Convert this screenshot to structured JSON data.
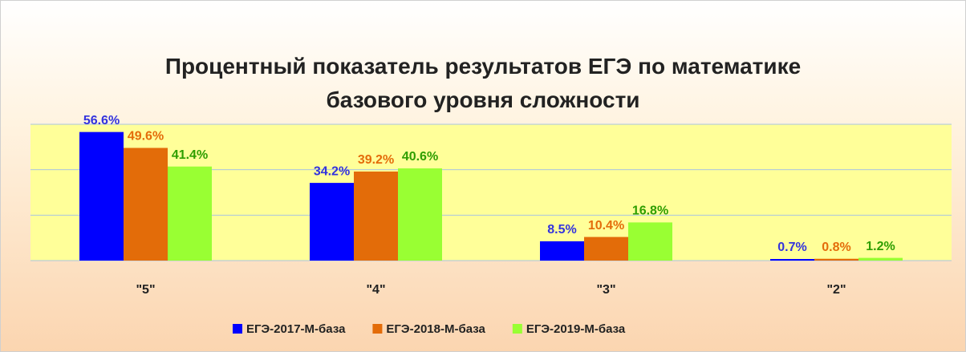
{
  "chart_data": {
    "type": "bar",
    "title": "Процентный показатель результатов ЕГЭ по математике базового уровня сложности",
    "categories": [
      "\"5\"",
      "\"4\"",
      "\"3\"",
      "\"2\""
    ],
    "series": [
      {
        "name": "ЕГЭ-2017-М-база",
        "color": "#0000ff",
        "label_color": "#3333dd",
        "values": [
          56.6,
          34.2,
          8.5,
          0.7
        ],
        "value_labels": [
          "56.6%",
          "34.2%",
          "8.5%",
          "0.7%"
        ]
      },
      {
        "name": "ЕГЭ-2018-М-база",
        "color": "#e36c09",
        "label_color": "#e46c0a",
        "values": [
          49.6,
          39.2,
          10.4,
          0.8
        ],
        "value_labels": [
          "49.6%",
          "39.2%",
          "10.4%",
          "0.8%"
        ]
      },
      {
        "name": "ЕГЭ-2019-М-база",
        "color": "#99ff33",
        "label_color": "#2e9e00",
        "values": [
          41.4,
          40.6,
          16.8,
          1.2
        ],
        "value_labels": [
          "41.4%",
          "40.6%",
          "16.8%",
          "1.2%"
        ]
      }
    ],
    "ylim": [
      0,
      60
    ],
    "yticks": [
      0,
      20,
      40,
      60
    ],
    "grid": true,
    "legend": "bottom"
  }
}
